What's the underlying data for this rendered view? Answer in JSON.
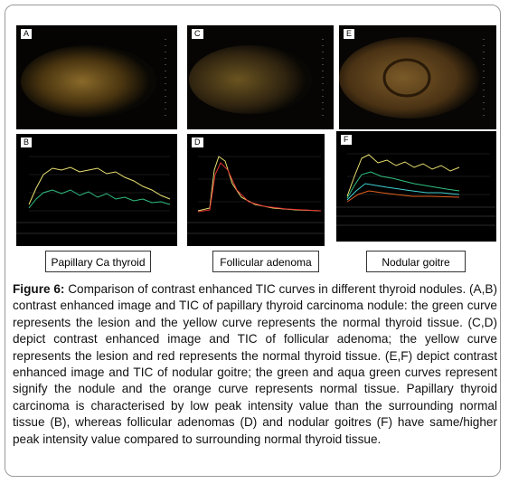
{
  "panels": {
    "A": "A",
    "B": "B",
    "C": "C",
    "D": "D",
    "E": "E",
    "F": "F"
  },
  "labels": [
    "Papillary Ca thyroid",
    "Follicular adenoma",
    "Nodular goitre"
  ],
  "caption": {
    "label": "Figure 6:",
    "text": "Comparison of contrast enhanced TIC curves in different thyroid nodules. (A,B) contrast enhanced image and TIC of papillary thyroid carcinoma nodule: the green curve represents the lesion and the yellow curve represents the normal thyroid tissue. (C,D) depict contrast enhanced image and TIC of follicular adenoma; the yellow curve represents the lesion and red represents the normal thyroid tissue. (E,F) depict contrast enhanced image and TIC of nodular goitre; the green and aqua green curves represent signify the nodule and the orange curve represents normal tissue. Papillary thyroid carcinoma is characterised by low peak intensity value than the surrounding normal tissue (B), whereas follicular adenomas (D) and nodular goitres (F) have same/higher peak intensity value compared to surrounding normal thyroid tissue."
  }
}
